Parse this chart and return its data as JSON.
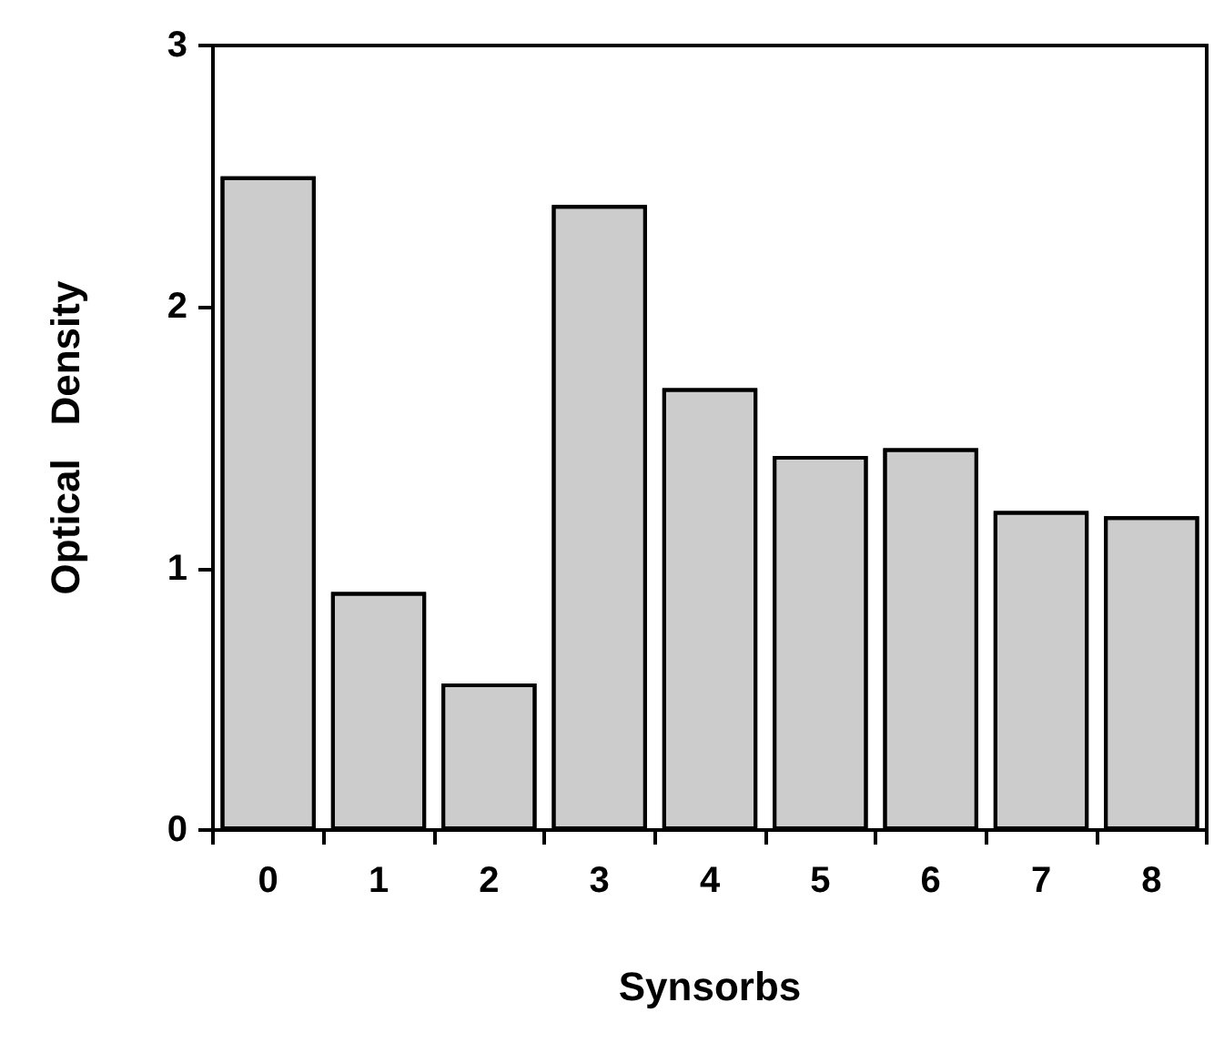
{
  "chart_data": {
    "type": "bar",
    "xlabel": "Synsorbs",
    "ylabel": "Optical   Density",
    "categories": [
      "0",
      "1",
      "2",
      "3",
      "4",
      "5",
      "6",
      "7",
      "8"
    ],
    "values": [
      2.5,
      0.91,
      0.56,
      2.39,
      1.69,
      1.43,
      1.46,
      1.22,
      1.2
    ],
    "color": "#cccccc",
    "ylim": [
      0,
      3
    ],
    "yticks": [
      0,
      1,
      2,
      3
    ],
    "grid": false
  }
}
